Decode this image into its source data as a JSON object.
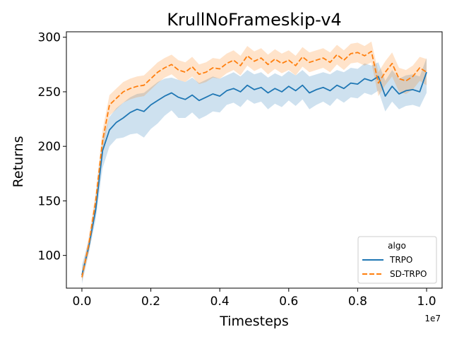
{
  "chart_data": {
    "type": "line",
    "title": "KrullNoFrameskip-v4",
    "xlabel": "Timesteps",
    "ylabel": "Returns",
    "x_offset_label": "1e7",
    "xlim": [
      -0.045,
      1.045
    ],
    "ylim": [
      70,
      305
    ],
    "xticks": [
      0.0,
      0.2,
      0.4,
      0.6,
      0.8,
      1.0
    ],
    "xtick_labels": [
      "0.0",
      "0.2",
      "0.4",
      "0.6",
      "0.8",
      "1.0"
    ],
    "yticks": [
      100,
      150,
      200,
      250,
      300
    ],
    "ytick_labels": [
      "100",
      "150",
      "200",
      "250",
      "300"
    ],
    "grid": false,
    "legend": {
      "title": "algo",
      "placement": "lower-right"
    },
    "x": [
      0.0,
      0.02,
      0.04,
      0.06,
      0.08,
      0.1,
      0.12,
      0.14,
      0.16,
      0.18,
      0.2,
      0.22,
      0.24,
      0.26,
      0.28,
      0.3,
      0.32,
      0.34,
      0.36,
      0.38,
      0.4,
      0.42,
      0.44,
      0.46,
      0.48,
      0.5,
      0.52,
      0.54,
      0.56,
      0.58,
      0.6,
      0.62,
      0.64,
      0.66,
      0.68,
      0.7,
      0.72,
      0.74,
      0.76,
      0.78,
      0.8,
      0.82,
      0.84,
      0.86,
      0.88,
      0.9,
      0.92,
      0.94,
      0.96,
      0.98,
      1.0
    ],
    "series": [
      {
        "name": "TRPO",
        "color": "#1f77b4",
        "dash": "solid",
        "values": [
          82,
          108,
          142,
          196,
          215,
          222,
          226,
          231,
          234,
          232,
          238,
          242,
          246,
          249,
          245,
          243,
          247,
          242,
          245,
          248,
          246,
          251,
          253,
          250,
          256,
          252,
          254,
          249,
          253,
          250,
          255,
          251,
          256,
          249,
          252,
          254,
          251,
          256,
          253,
          258,
          257,
          262,
          260,
          264,
          246,
          255,
          248,
          251,
          252,
          250,
          268
        ],
        "lower": [
          74,
          102,
          133,
          180,
          200,
          207,
          208,
          211,
          212,
          208,
          216,
          221,
          228,
          233,
          226,
          226,
          231,
          225,
          228,
          232,
          231,
          238,
          240,
          236,
          243,
          239,
          241,
          234,
          239,
          236,
          242,
          237,
          243,
          234,
          238,
          241,
          237,
          244,
          240,
          245,
          244,
          249,
          247,
          251,
          232,
          241,
          234,
          237,
          238,
          236,
          249
        ],
        "upper": [
          91,
          114,
          150,
          206,
          227,
          235,
          240,
          245,
          248,
          249,
          254,
          259,
          262,
          263,
          261,
          259,
          263,
          258,
          261,
          264,
          262,
          265,
          268,
          264,
          270,
          266,
          268,
          263,
          267,
          264,
          269,
          265,
          270,
          264,
          266,
          268,
          266,
          270,
          268,
          272,
          271,
          276,
          274,
          277,
          260,
          270,
          262,
          265,
          266,
          264,
          281
        ]
      },
      {
        "name": "SD-TRPO",
        "color": "#ff7f0e",
        "dash": "dashed",
        "values": [
          80,
          110,
          150,
          205,
          238,
          244,
          250,
          253,
          255,
          256,
          262,
          268,
          272,
          275,
          270,
          268,
          273,
          266,
          268,
          272,
          271,
          276,
          279,
          274,
          283,
          278,
          281,
          275,
          280,
          276,
          279,
          274,
          282,
          277,
          279,
          281,
          277,
          284,
          279,
          285,
          286,
          283,
          287,
          258,
          268,
          276,
          262,
          260,
          264,
          272,
          268
        ],
        "lower": [
          76,
          103,
          142,
          195,
          228,
          234,
          240,
          243,
          245,
          246,
          252,
          258,
          263,
          266,
          261,
          259,
          264,
          257,
          259,
          263,
          262,
          267,
          270,
          265,
          274,
          269,
          272,
          266,
          271,
          267,
          270,
          265,
          273,
          268,
          270,
          272,
          268,
          275,
          270,
          276,
          277,
          274,
          277,
          246,
          256,
          264,
          250,
          248,
          252,
          260,
          256
        ],
        "upper": [
          85,
          117,
          158,
          215,
          247,
          253,
          259,
          262,
          264,
          265,
          271,
          277,
          281,
          284,
          279,
          277,
          282,
          275,
          277,
          281,
          280,
          285,
          288,
          283,
          292,
          287,
          290,
          284,
          289,
          285,
          288,
          283,
          291,
          286,
          288,
          290,
          286,
          293,
          288,
          294,
          295,
          292,
          296,
          268,
          278,
          286,
          272,
          270,
          274,
          282,
          280
        ]
      }
    ]
  }
}
